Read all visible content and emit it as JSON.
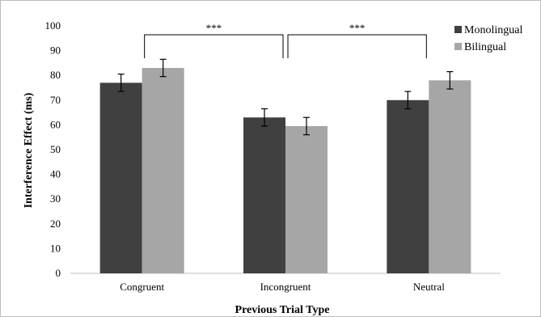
{
  "chart_data": {
    "type": "bar",
    "title": "",
    "xlabel": "Previous Trial Type",
    "ylabel": "Interference Effect (ms)",
    "ylim": [
      0,
      100
    ],
    "yticks": [
      0,
      10,
      20,
      30,
      40,
      50,
      60,
      70,
      80,
      90,
      100
    ],
    "categories": [
      "Congruent",
      "Incongruent",
      "Neutral"
    ],
    "series": [
      {
        "name": "Monolingual",
        "color": "#404040",
        "values": [
          77,
          63,
          70
        ],
        "error": [
          3.5,
          3.5,
          3.5
        ]
      },
      {
        "name": "Bilingual",
        "color": "#a6a6a6",
        "values": [
          83,
          59.5,
          78
        ],
        "error": [
          3.5,
          3.5,
          3.5
        ]
      }
    ],
    "legend_position": "top-right",
    "grid": false,
    "significance": [
      {
        "between": [
          "Congruent",
          "Incongruent"
        ],
        "label": "***"
      },
      {
        "between": [
          "Incongruent",
          "Neutral"
        ],
        "label": "***"
      }
    ]
  }
}
